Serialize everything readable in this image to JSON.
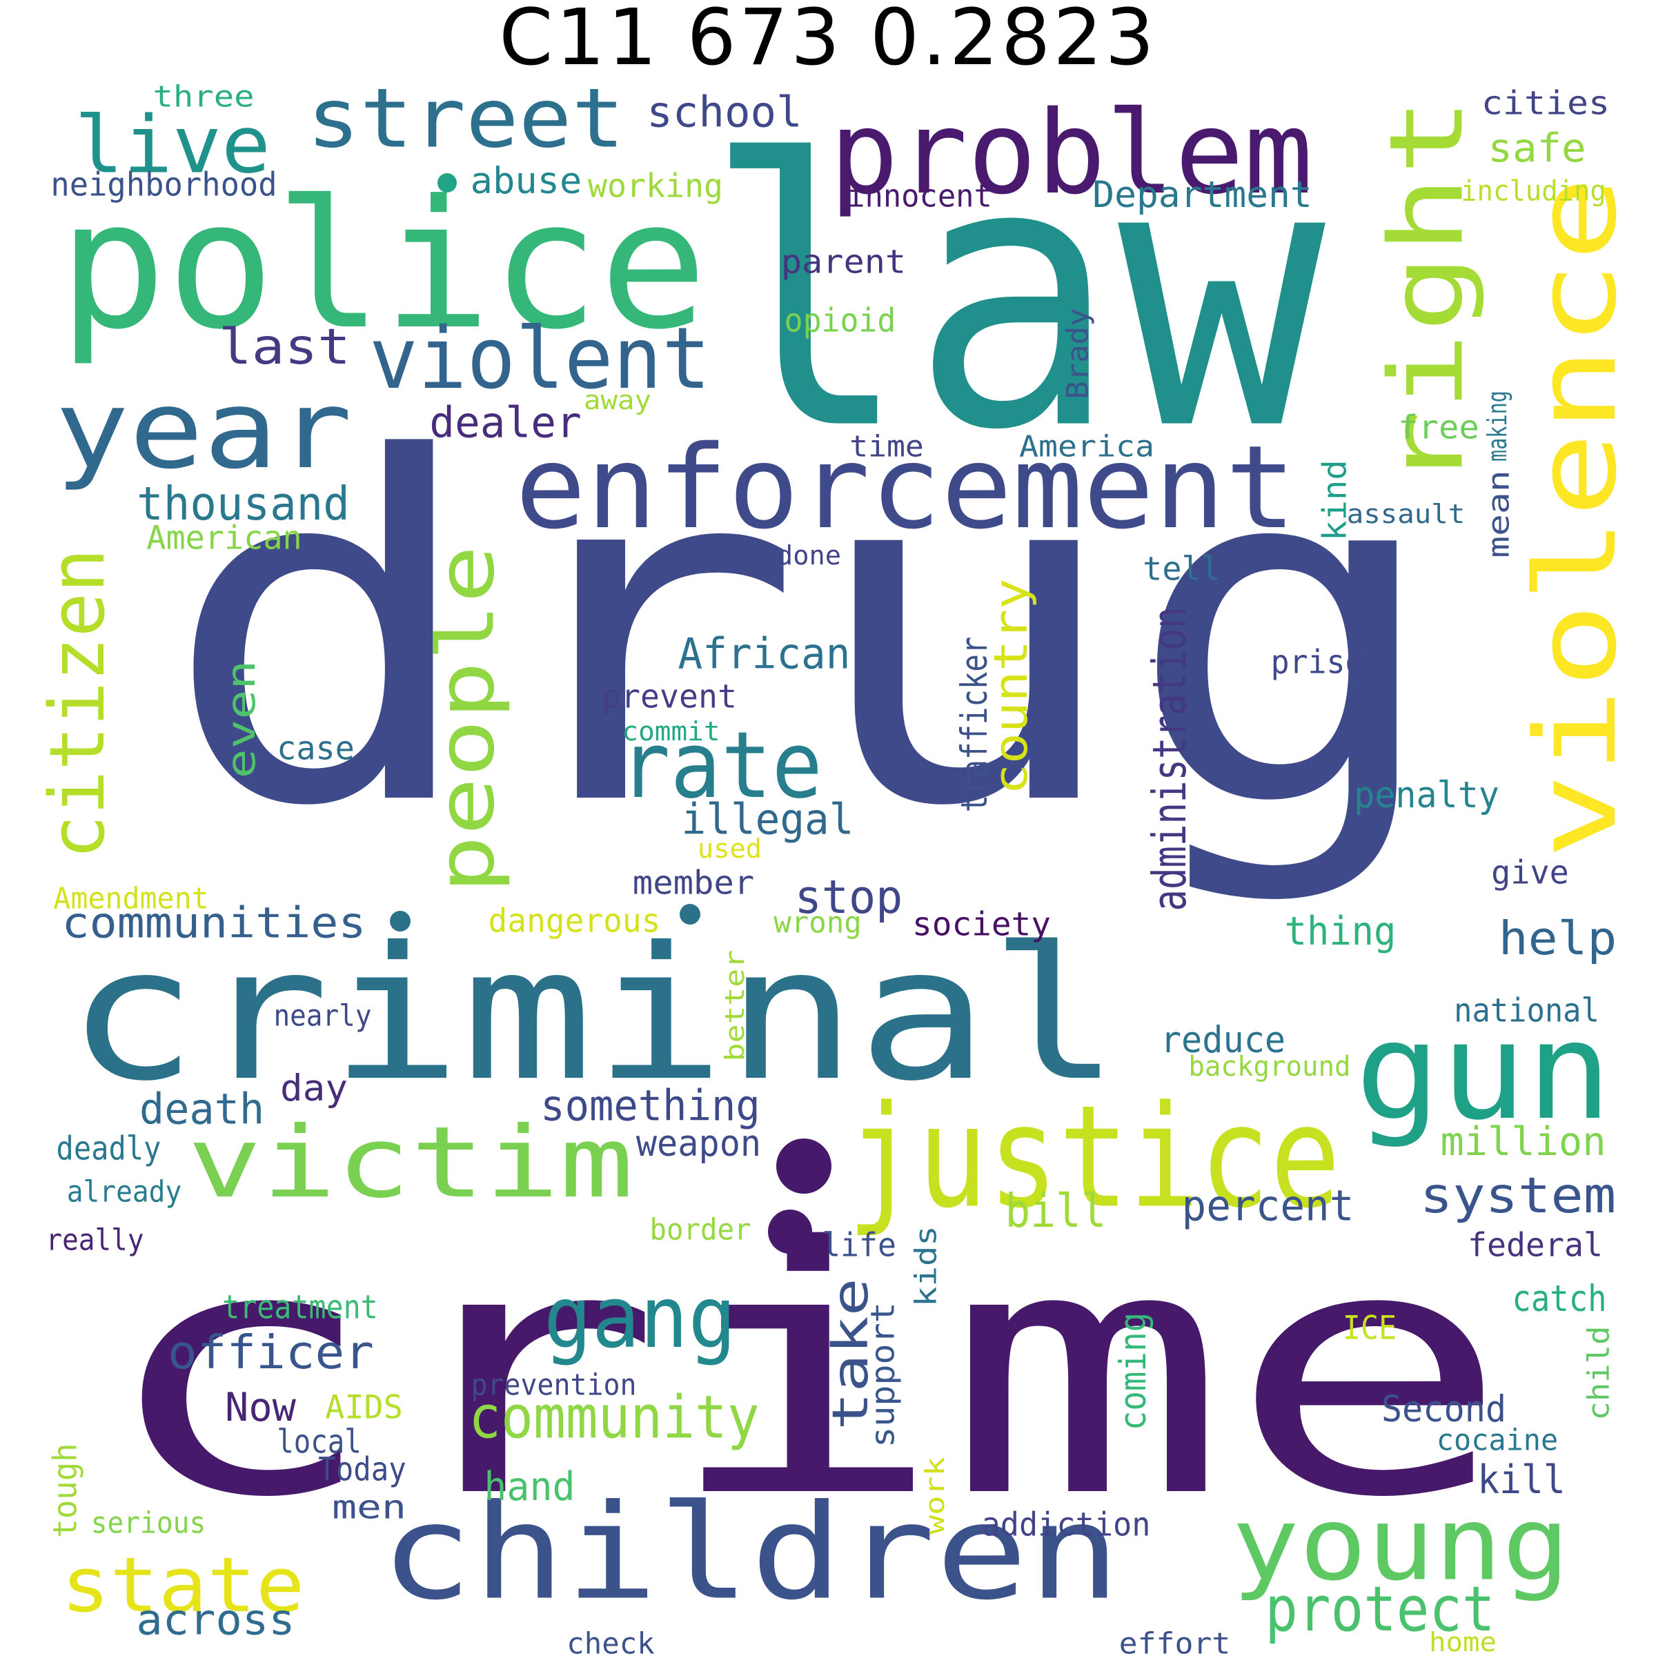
{
  "title": "C11 673 0.2823",
  "words": [
    {
      "text": "drug",
      "color": "#3e4a89"
    },
    {
      "text": "law",
      "color": "#21908d"
    },
    {
      "text": "crime",
      "color": "#46196b"
    },
    {
      "text": "criminal",
      "color": "#2b7189"
    },
    {
      "text": "police",
      "color": "#35b779"
    },
    {
      "text": "problem",
      "color": "#4a1a6e"
    },
    {
      "text": "violence",
      "color": "#fde725"
    },
    {
      "text": "right",
      "color": "#a5db36"
    },
    {
      "text": "enforcement",
      "color": "#3e4a89"
    },
    {
      "text": "year",
      "color": "#31688e"
    },
    {
      "text": "street",
      "color": "#2d708e"
    },
    {
      "text": "live",
      "color": "#20928c"
    },
    {
      "text": "violent",
      "color": "#32648e"
    },
    {
      "text": "justice",
      "color": "#c7e020"
    },
    {
      "text": "children",
      "color": "#3b528b"
    },
    {
      "text": "victim",
      "color": "#7ad151"
    },
    {
      "text": "gun",
      "color": "#1fa187"
    },
    {
      "text": "young",
      "color": "#5ec962"
    },
    {
      "text": "people",
      "color": "#90d743"
    },
    {
      "text": "citizen",
      "color": "#b5de2b"
    },
    {
      "text": "rate",
      "color": "#277f8e"
    },
    {
      "text": "gang",
      "color": "#23888e"
    },
    {
      "text": "state",
      "color": "#e5e419"
    },
    {
      "text": "community",
      "color": "#8fd744"
    },
    {
      "text": "protect",
      "color": "#4ac16d"
    },
    {
      "text": "school",
      "color": "#3f4889"
    },
    {
      "text": "thousand",
      "color": "#2a788e"
    },
    {
      "text": "last",
      "color": "#443a83"
    },
    {
      "text": "dealer",
      "color": "#472d7b"
    },
    {
      "text": "abuse",
      "color": "#24868e"
    },
    {
      "text": "communities",
      "color": "#355f8d"
    },
    {
      "text": "officer",
      "color": "#39568c"
    },
    {
      "text": "system",
      "color": "#3a548c"
    },
    {
      "text": "country",
      "color": "#d8e219"
    },
    {
      "text": "African",
      "color": "#2c728e"
    },
    {
      "text": "illegal",
      "color": "#31688e"
    },
    {
      "text": "take",
      "color": "#3b528b"
    },
    {
      "text": "stop",
      "color": "#3f4788"
    },
    {
      "text": "help",
      "color": "#32658e"
    },
    {
      "text": "percent",
      "color": "#3a548c"
    },
    {
      "text": "bill",
      "color": "#a0da39"
    },
    {
      "text": "death",
      "color": "#306a8e"
    },
    {
      "text": "something",
      "color": "#3e4989"
    },
    {
      "text": "across",
      "color": "#2f6c8e"
    },
    {
      "text": "million",
      "color": "#7fd34e"
    },
    {
      "text": "even",
      "color": "#4ec36b"
    },
    {
      "text": "Department",
      "color": "#2a788e"
    },
    {
      "text": "safe",
      "color": "#93d741"
    },
    {
      "text": "cities",
      "color": "#414487"
    },
    {
      "text": "neighborhood",
      "color": "#3b528b"
    },
    {
      "text": "three",
      "color": "#2ab07f"
    },
    {
      "text": "working",
      "color": "#9dd93b"
    },
    {
      "text": "innocent",
      "color": "#481b6d"
    },
    {
      "text": "including",
      "color": "#b8de29"
    },
    {
      "text": "parent",
      "color": "#46337e"
    },
    {
      "text": "opioid",
      "color": "#7ad151"
    },
    {
      "text": "away",
      "color": "#a2da37"
    },
    {
      "text": "Brady",
      "color": "#3b528b"
    },
    {
      "text": "time",
      "color": "#414487"
    },
    {
      "text": "America",
      "color": "#2d708e"
    },
    {
      "text": "free",
      "color": "#6ccd5a"
    },
    {
      "text": "making",
      "color": "#2a788e"
    },
    {
      "text": "mean",
      "color": "#3b528b"
    },
    {
      "text": "assault",
      "color": "#31688e"
    },
    {
      "text": "kind",
      "color": "#1f9e89"
    },
    {
      "text": "American",
      "color": "#86d549"
    },
    {
      "text": "done",
      "color": "#414487"
    },
    {
      "text": "tell",
      "color": "#2e6e8e"
    },
    {
      "text": "administration",
      "color": "#453882"
    },
    {
      "text": "trafficker",
      "color": "#3b528b"
    },
    {
      "text": "prison",
      "color": "#3f4889"
    },
    {
      "text": "prevent",
      "color": "#433e85"
    },
    {
      "text": "commit",
      "color": "#22a884"
    },
    {
      "text": "case",
      "color": "#2d708e"
    },
    {
      "text": "penalty",
      "color": "#25858e"
    },
    {
      "text": "used",
      "color": "#dde318"
    },
    {
      "text": "Amendment",
      "color": "#d2e21b"
    },
    {
      "text": "member",
      "color": "#404688"
    },
    {
      "text": "give",
      "color": "#414487"
    },
    {
      "text": "dangerous",
      "color": "#d5e21a"
    },
    {
      "text": "wrong",
      "color": "#8bd646"
    },
    {
      "text": "society",
      "color": "#471063"
    },
    {
      "text": "thing",
      "color": "#2eb37c"
    },
    {
      "text": "national",
      "color": "#2d708e"
    },
    {
      "text": "nearly",
      "color": "#3e4989"
    },
    {
      "text": "better",
      "color": "#a0da39"
    },
    {
      "text": "reduce",
      "color": "#2c738e"
    },
    {
      "text": "background",
      "color": "#95d840"
    },
    {
      "text": "day",
      "color": "#472c7a"
    },
    {
      "text": "weapon",
      "color": "#3e4a89"
    },
    {
      "text": "deadly",
      "color": "#2a788e"
    },
    {
      "text": "already",
      "color": "#297b8e"
    },
    {
      "text": "really",
      "color": "#482475"
    },
    {
      "text": "border",
      "color": "#95d840"
    },
    {
      "text": "life",
      "color": "#3b528b"
    },
    {
      "text": "kids",
      "color": "#2c738e"
    },
    {
      "text": "federal",
      "color": "#46327e"
    },
    {
      "text": "treatment",
      "color": "#3cbb75"
    },
    {
      "text": "catch",
      "color": "#29af7f"
    },
    {
      "text": "support",
      "color": "#39568c"
    },
    {
      "text": "ICE",
      "color": "#c8e020"
    },
    {
      "text": "child",
      "color": "#5ec962"
    },
    {
      "text": "prevention",
      "color": "#3f4889"
    },
    {
      "text": "Second",
      "color": "#3b528b"
    },
    {
      "text": "Now",
      "color": "#482575"
    },
    {
      "text": "AIDS",
      "color": "#b5de2b"
    },
    {
      "text": "local",
      "color": "#3b528b"
    },
    {
      "text": "coming",
      "color": "#35b779"
    },
    {
      "text": "cocaine",
      "color": "#2a788e"
    },
    {
      "text": "Today",
      "color": "#3e4a89"
    },
    {
      "text": "tough",
      "color": "#9fda3a"
    },
    {
      "text": "work",
      "color": "#d0e11c"
    },
    {
      "text": "kill",
      "color": "#3e4989"
    },
    {
      "text": "hand",
      "color": "#4ac16d"
    },
    {
      "text": "men",
      "color": "#3b528b"
    },
    {
      "text": "serious",
      "color": "#84d44b"
    },
    {
      "text": "addiction",
      "color": "#414487"
    },
    {
      "text": "check",
      "color": "#3b528b"
    },
    {
      "text": "effort",
      "color": "#3b528b"
    },
    {
      "text": "home",
      "color": "#bddf26"
    }
  ],
  "dots": [
    {
      "color": "#20a386"
    },
    {
      "color": "#46196b"
    },
    {
      "color": "#2b7189"
    },
    {
      "color": "#2b7189"
    },
    {
      "color": "#46196b"
    }
  ]
}
